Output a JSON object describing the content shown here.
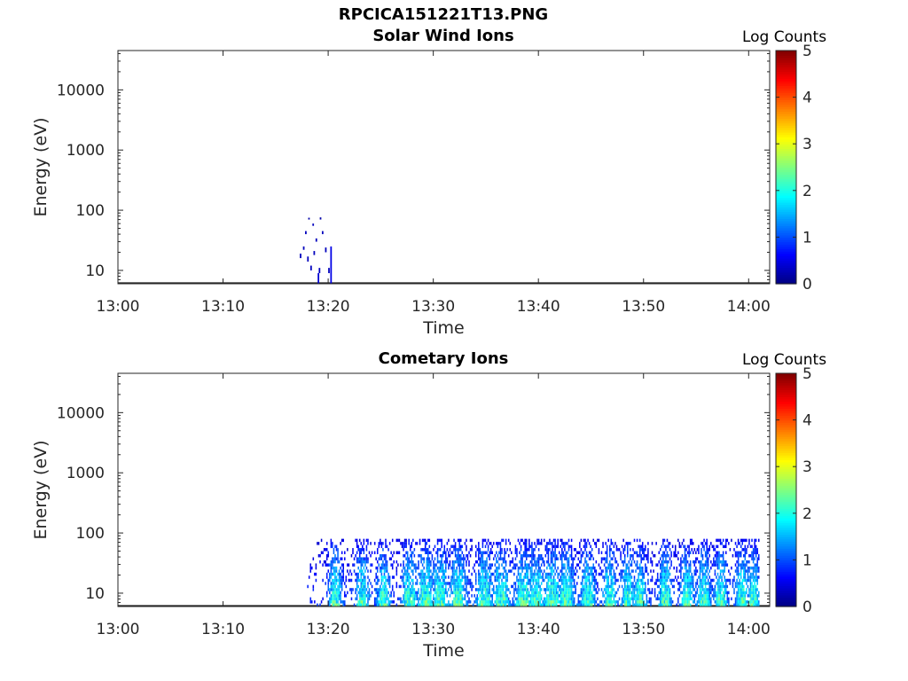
{
  "figure": {
    "title": "RPCICA151221T13.PNG"
  },
  "chart_data": [
    {
      "type": "heatmap",
      "title": "Solar Wind Ions",
      "xlabel": "Time",
      "ylabel": "Energy (eV)",
      "x_ticks": [
        "13:00",
        "13:10",
        "13:20",
        "13:30",
        "13:40",
        "13:50",
        "14:00"
      ],
      "y_ticks": [
        "10",
        "100",
        "1000",
        "10000"
      ],
      "y_scale": "log",
      "ylim_eV": [
        6,
        45000
      ],
      "xlim_minutes": [
        0,
        62
      ],
      "colorbar": {
        "label": "Log Counts",
        "ticks": [
          "0",
          "1",
          "2",
          "3",
          "4",
          "5"
        ],
        "range": [
          0,
          5
        ],
        "colormap": "jet"
      },
      "cells": [
        {
          "t": 17.3,
          "e_low": 16,
          "e_high": 19,
          "c": 0.3
        },
        {
          "t": 17.6,
          "e_low": 22,
          "e_high": 25,
          "c": 0.3
        },
        {
          "t": 17.8,
          "e_low": 40,
          "e_high": 45,
          "c": 0.3
        },
        {
          "t": 18.0,
          "e_low": 14,
          "e_high": 17,
          "c": 0.3
        },
        {
          "t": 18.1,
          "e_low": 70,
          "e_high": 75,
          "c": 0.2
        },
        {
          "t": 18.3,
          "e_low": 10,
          "e_high": 12,
          "c": 0.3
        },
        {
          "t": 18.5,
          "e_low": 55,
          "e_high": 60,
          "c": 0.3
        },
        {
          "t": 18.6,
          "e_low": 18,
          "e_high": 21,
          "c": 0.3
        },
        {
          "t": 18.8,
          "e_low": 30,
          "e_high": 34,
          "c": 0.3
        },
        {
          "t": 19.0,
          "e_low": 6,
          "e_high": 9,
          "c": 0.4
        },
        {
          "t": 19.1,
          "e_low": 9,
          "e_high": 11,
          "c": 0.3
        },
        {
          "t": 19.2,
          "e_low": 70,
          "e_high": 76,
          "c": 0.2
        },
        {
          "t": 19.4,
          "e_low": 40,
          "e_high": 45,
          "c": 0.3
        },
        {
          "t": 19.7,
          "e_low": 20,
          "e_high": 24,
          "c": 0.3
        },
        {
          "t": 20.0,
          "e_low": 9,
          "e_high": 11,
          "c": 0.3
        },
        {
          "t": 20.2,
          "e_low": 6,
          "e_high": 25,
          "c": 0.5
        }
      ]
    },
    {
      "type": "heatmap",
      "title": "Cometary Ions",
      "xlabel": "Time",
      "ylabel": "Energy (eV)",
      "x_ticks": [
        "13:00",
        "13:10",
        "13:20",
        "13:30",
        "13:40",
        "13:50",
        "14:00"
      ],
      "y_ticks": [
        "10",
        "100",
        "1000",
        "10000"
      ],
      "y_scale": "log",
      "ylim_eV": [
        6,
        45000
      ],
      "xlim_minutes": [
        0,
        62
      ],
      "colorbar": {
        "label": "Log Counts",
        "ticks": [
          "0",
          "1",
          "2",
          "3",
          "4",
          "5"
        ],
        "range": [
          0,
          5
        ],
        "colormap": "jet"
      },
      "data_window": {
        "t_start": 18.0,
        "t_end": 61.0,
        "e_min": 6,
        "e_max": 80
      },
      "cells": []
    }
  ]
}
